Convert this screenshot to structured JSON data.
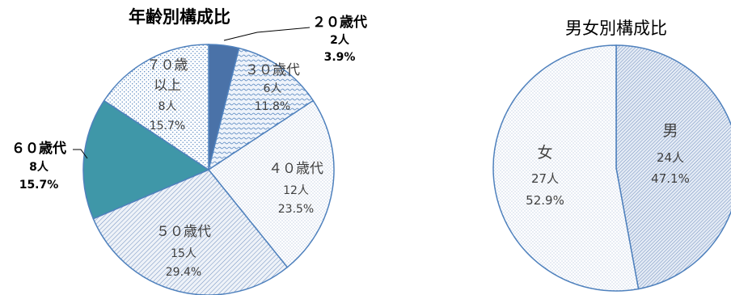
{
  "chart_data": [
    {
      "type": "pie",
      "title": "年齢別構成比",
      "slices": [
        {
          "label": "２０歳代",
          "count": "2人",
          "percent": "3.9%",
          "value": 3.9,
          "color": "#4a72a8",
          "fill": "solid",
          "label_style": "bold"
        },
        {
          "label": "３０歳代",
          "count": "6人",
          "percent": "11.8%",
          "value": 11.8,
          "color": "#dde7f3",
          "fill": "wave",
          "label_style": "normal"
        },
        {
          "label": "４０歳代",
          "count": "12人",
          "percent": "23.5%",
          "value": 23.5,
          "color": "#ffffff",
          "fill": "dots-fine",
          "label_style": "normal"
        },
        {
          "label": "５０歳代",
          "count": "15人",
          "percent": "29.4%",
          "value": 29.4,
          "color": "#e6ecf4",
          "fill": "diag",
          "label_style": "normal"
        },
        {
          "label": "６０歳代",
          "count": "8人",
          "percent": "15.7%",
          "value": 15.7,
          "color": "#3f97a8",
          "fill": "solid",
          "label_style": "bold"
        },
        {
          "label": "７０歳以上",
          "label_lines": [
            "７０歳",
            "以上"
          ],
          "count": "8人",
          "percent": "15.7%",
          "value": 15.7,
          "color": "#ffffff",
          "fill": "dots",
          "label_style": "normal"
        }
      ]
    },
    {
      "type": "pie",
      "title": "男女別構成比",
      "slices": [
        {
          "label": "男",
          "count": "24人",
          "percent": "47.1%",
          "value": 47.1,
          "color": "#dde6f1",
          "fill": "diag-dense"
        },
        {
          "label": "女",
          "count": "27人",
          "percent": "52.9%",
          "value": 52.9,
          "color": "#f4f7fb",
          "fill": "dots-fine"
        }
      ]
    }
  ]
}
